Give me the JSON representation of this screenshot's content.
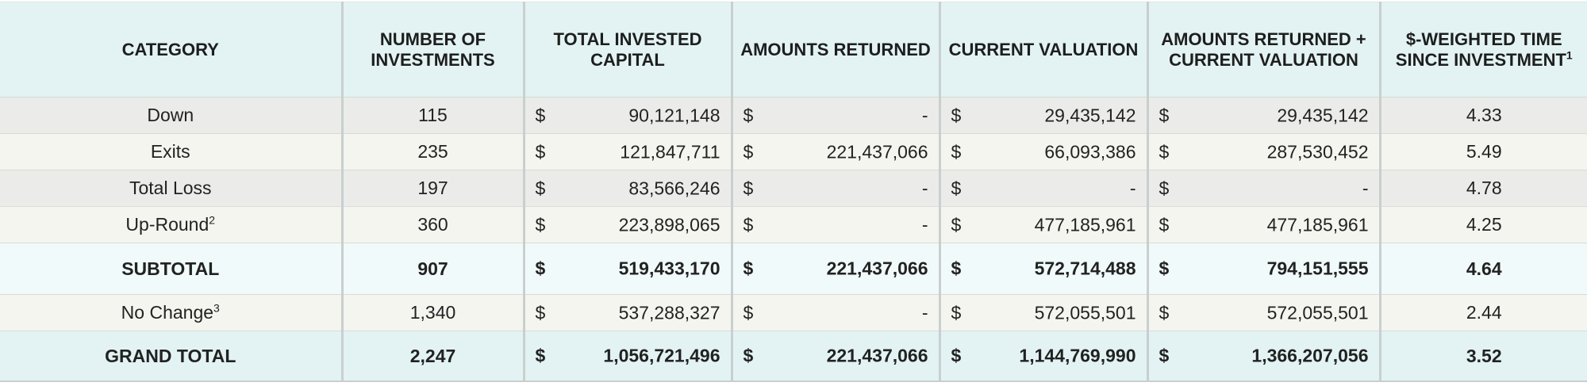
{
  "headers": {
    "category": "CATEGORY",
    "num_investments": "NUMBER OF INVESTMENTS",
    "total_invested": "TOTAL INVESTED CAPITAL",
    "amounts_returned": "AMOUNTS RETURNED",
    "current_valuation": "CURRENT VALUATION",
    "returned_plus_valuation": "AMOUNTS RETURNED + CURRENT VALUATION",
    "weighted_time": "$-WEIGHTED TIME SINCE INVESTMENT",
    "weighted_time_note": "1"
  },
  "currency_symbol": "$",
  "rows": [
    {
      "category": "Down",
      "note": "",
      "count": "115",
      "invested": "90,121,148",
      "returned": "-",
      "valuation": "29,435,142",
      "total": "29,435,142",
      "time": "4.33"
    },
    {
      "category": "Exits",
      "note": "",
      "count": "235",
      "invested": "121,847,711",
      "returned": "221,437,066",
      "valuation": "66,093,386",
      "total": "287,530,452",
      "time": "5.49"
    },
    {
      "category": "Total Loss",
      "note": "",
      "count": "197",
      "invested": "83,566,246",
      "returned": "-",
      "valuation": "-",
      "total": "-",
      "time": "4.78"
    },
    {
      "category": "Up-Round",
      "note": "2",
      "count": "360",
      "invested": "223,898,065",
      "returned": "-",
      "valuation": "477,185,961",
      "total": "477,185,961",
      "time": "4.25"
    },
    {
      "category": "SUBTOTAL",
      "note": "",
      "count": "907",
      "invested": "519,433,170",
      "returned": "221,437,066",
      "valuation": "572,714,488",
      "total": "794,151,555",
      "time": "4.64"
    },
    {
      "category": "No Change",
      "note": "3",
      "count": "1,340",
      "invested": "537,288,327",
      "returned": "-",
      "valuation": "572,055,501",
      "total": "572,055,501",
      "time": "2.44"
    },
    {
      "category": "GRAND TOTAL",
      "note": "",
      "count": "2,247",
      "invested": "1,056,721,496",
      "returned": "221,437,066",
      "valuation": "1,144,769,990",
      "total": "1,366,207,056",
      "time": "3.52"
    }
  ],
  "colors": {
    "header_bg": "#e3f3f3",
    "row_grey": "#ebebe9",
    "row_light": "#f4f5ef",
    "subtotal_bg": "#f1fafa",
    "grand_total_bg": "#e3f3f3",
    "divider": "#c9cfcf"
  }
}
